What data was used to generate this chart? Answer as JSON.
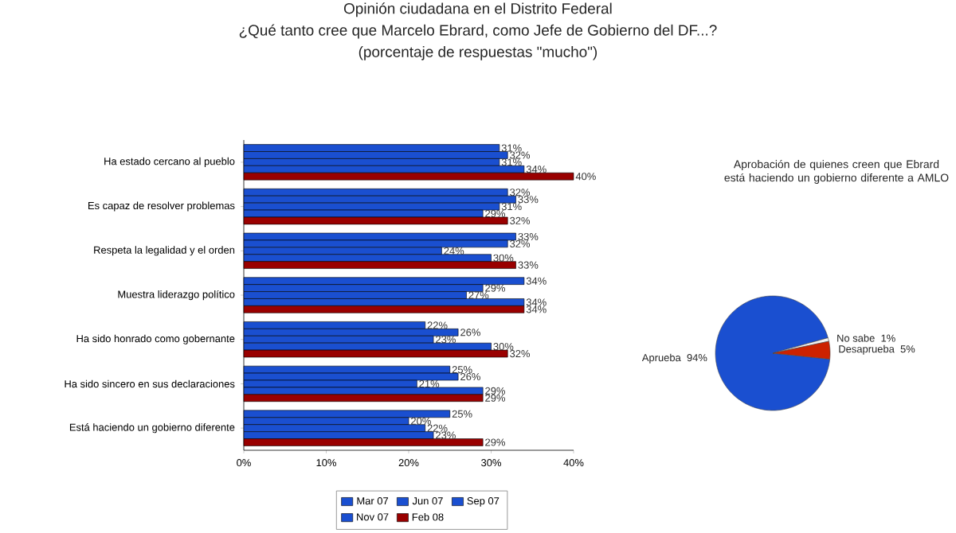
{
  "chart_data": [
    {
      "type": "bar",
      "orientation": "horizontal",
      "title": "Opinión ciudadana en el Distrito Federal",
      "subtitle": "¿Qué tanto cree que Marcelo Ebrard, como Jefe de Gobierno del DF...?",
      "annotations": [
        "(porcentaje de respuestas \"mucho\")"
      ],
      "categories": [
        "Ha estado cercano al pueblo",
        "Es capaz de resolver problemas",
        "Respeta la legalidad y el orden",
        "Muestra liderazgo político",
        "Ha sido honrado como gobernante",
        "Ha sido sincero en sus declaraciones",
        "Está haciendo un gobierno diferente"
      ],
      "series": [
        {
          "name": "Mar 07",
          "color": "#1a4fd0",
          "values": [
            31,
            32,
            33,
            34,
            22,
            25,
            25
          ],
          "value_labels": [
            "31%",
            "32%",
            "33%",
            "34%",
            "22%",
            "25%",
            "25%"
          ]
        },
        {
          "name": "Jun 07",
          "color": "#1a4fd0",
          "values": [
            32,
            33,
            32,
            29,
            26,
            26,
            20
          ],
          "value_labels": [
            "32%",
            "33%",
            "32%",
            "29%",
            "26%",
            "26%",
            "20%"
          ]
        },
        {
          "name": "Sep 07",
          "color": "#1a4fd0",
          "values": [
            31,
            31,
            24,
            27,
            23,
            21,
            22
          ],
          "value_labels": [
            "31%",
            "31%",
            "24%",
            "27%",
            "23%",
            "21%",
            "22%"
          ]
        },
        {
          "name": "Nov 07",
          "color": "#1a4fd0",
          "values": [
            34,
            29,
            30,
            34,
            30,
            29,
            23
          ],
          "value_labels": [
            "34%",
            "29%",
            "30%",
            "34%",
            "30%",
            "29%",
            "23%"
          ]
        },
        {
          "name": "Feb 08",
          "color": "#990000",
          "values": [
            40,
            32,
            33,
            34,
            32,
            29,
            29
          ],
          "value_labels": [
            "40%",
            "32%",
            "33%",
            "34%",
            "32%",
            "29%",
            "29%"
          ]
        }
      ],
      "xlim": [
        0,
        40
      ],
      "xticks": [
        {
          "value": 0,
          "label": "0%"
        },
        {
          "value": 10,
          "label": "10%"
        },
        {
          "value": 20,
          "label": "20%"
        },
        {
          "value": 30,
          "label": "30%"
        },
        {
          "value": 40,
          "label": "40%"
        }
      ],
      "legend": "bottom",
      "grid": false
    },
    {
      "type": "pie",
      "title": "Aprobación de quienes creen que Ebrard está haciendo un gobierno diferente a AMLO",
      "categories": [
        "Aprueba",
        "No sabe",
        "Desaprueba"
      ],
      "values": [
        94,
        1,
        5
      ],
      "value_labels": [
        "94%",
        "1%",
        "5%"
      ],
      "colors": [
        "#1a4fd0",
        "#f2f2f2",
        "#cc2200"
      ]
    }
  ]
}
